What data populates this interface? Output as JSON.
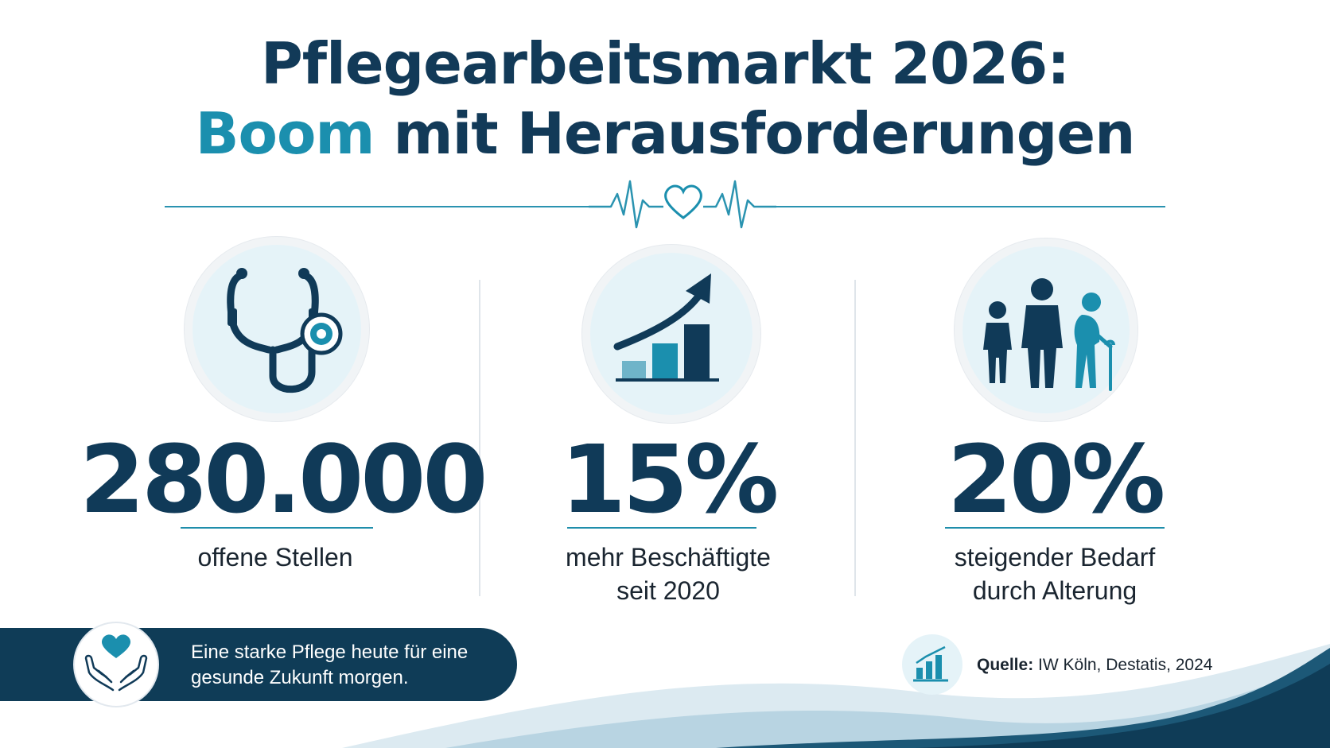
{
  "title": {
    "line1": "Pflegearbeitsmarkt 2026:",
    "line2_accent": "Boom",
    "line2_rest": "mit Herausforderungen"
  },
  "colors": {
    "navy": "#103a58",
    "teal": "#1b8fae",
    "light_blue": "#e5f3f8"
  },
  "stats": [
    {
      "icon": "stethoscope-icon",
      "value": "280.000",
      "label_line1": "offene Stellen",
      "label_line2": ""
    },
    {
      "icon": "growth-chart-icon",
      "value": "15%",
      "label_line1": "mehr Beschäftigte",
      "label_line2": "seit 2020"
    },
    {
      "icon": "family-generations-icon",
      "value": "20%",
      "label_line1": "steigender Bedarf",
      "label_line2": "durch Alterung"
    }
  ],
  "banner": {
    "icon": "heart-hands-icon",
    "line1": "Eine starke Pflege heute für eine",
    "line2": "gesunde Zukunft morgen."
  },
  "source": {
    "icon": "bar-chart-icon",
    "label": "Quelle:",
    "text": "IW Köln, Destatis, 2024"
  }
}
